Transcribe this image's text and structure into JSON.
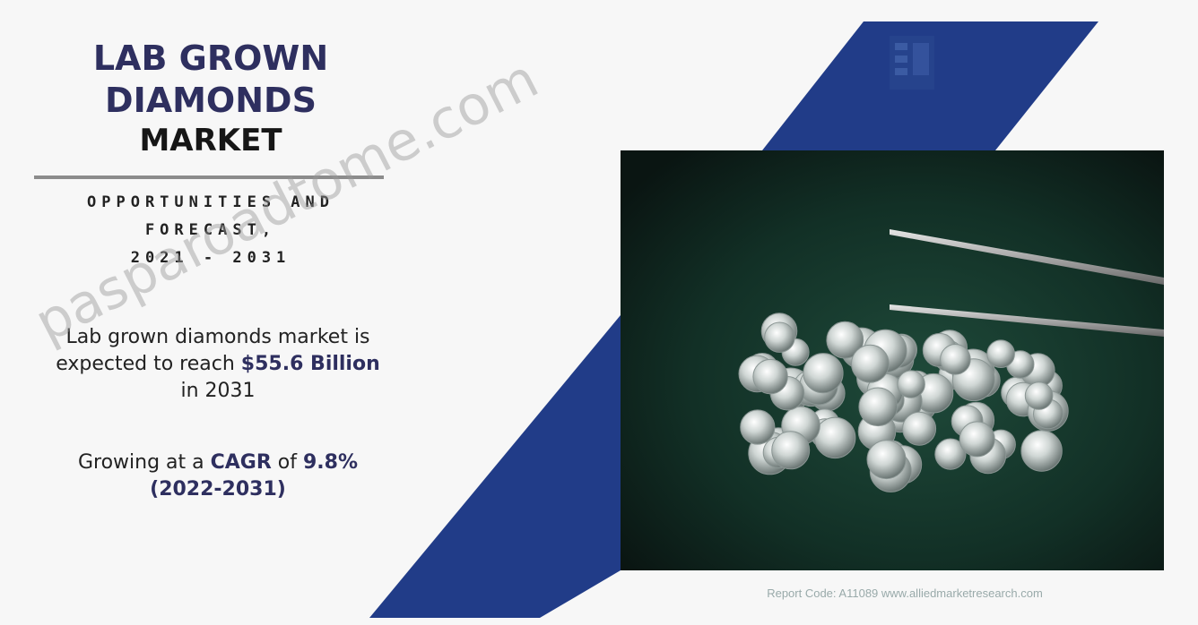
{
  "title": {
    "line1": "LAB GROWN",
    "line2": "DIAMONDS",
    "line3": "MARKET"
  },
  "subtitle": {
    "line1": "OPPORTUNITIES AND",
    "line2": "FORECAST,",
    "line3": "2021 - 2031"
  },
  "market": {
    "line1": "Lab grown diamonds market is",
    "line2_prefix": "expected to reach ",
    "value": "$55.6 Billion",
    "line3": "in 2031"
  },
  "growth": {
    "prefix": "Growing at a ",
    "cagr_label": "CAGR",
    "middle": " of ",
    "cagr_value": "9.8%",
    "period": "(2022-2031)"
  },
  "source_note": "Report Code: A11089 www.alliedmarketresearch.com",
  "watermark": "pasparoadtome.com",
  "colors": {
    "navy": "#2e2f5f",
    "stripe_blue": "#213c88",
    "background": "#f7f7f7",
    "photo_bg": "#0f1c18"
  }
}
